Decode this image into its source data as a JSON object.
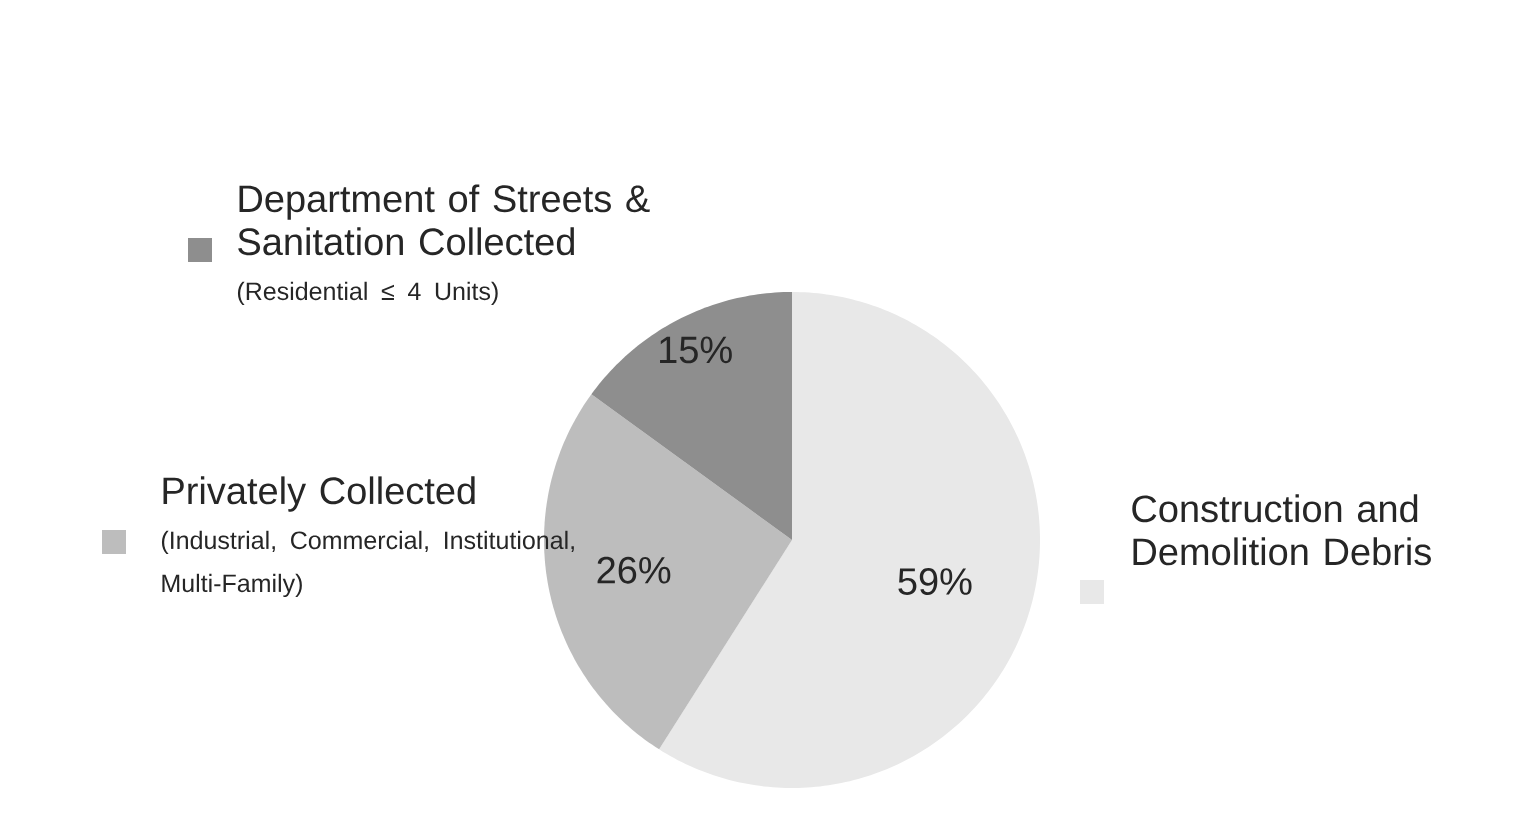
{
  "chart_data": {
    "type": "pie",
    "categories": [
      "Construction and Demolition Debris",
      "Privately Collected",
      "Department of Streets & Sanitation Collected"
    ],
    "values": [
      59,
      26,
      15
    ],
    "value_labels": [
      "59%",
      "26%",
      "15%"
    ],
    "colors": [
      "#e8e8e8",
      "#bdbdbd",
      "#8e8e8e"
    ],
    "annotations": [
      "(Industrial, Commercial, Institutional, Multi-Family)",
      "(Residential ≤ 4 Units)"
    ]
  }
}
